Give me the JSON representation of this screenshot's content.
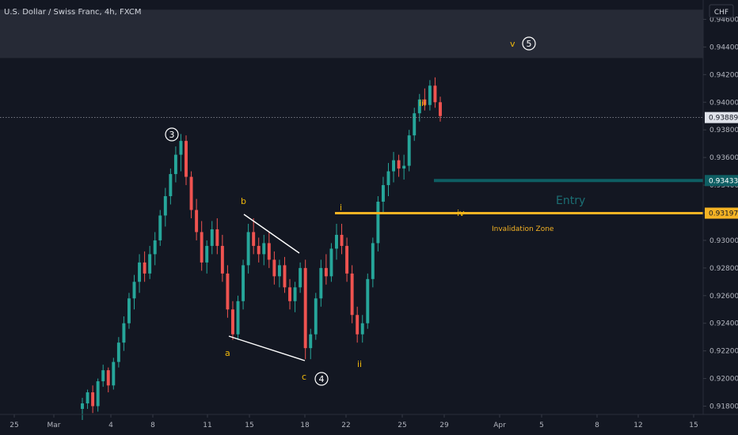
{
  "header": {
    "symbol_title": "U.S. Dollar / Swiss Franc, 4h, FXCM",
    "currency": "CHF"
  },
  "colors": {
    "background": "#131722",
    "up": "#26a69a",
    "down": "#ef5350",
    "wave_label": "#f0b90b",
    "entry_line": "#0e5e63",
    "entry_text": "#1b6f74",
    "invalidation_line": "#f5b324",
    "invalidation_tag": "#f5b324",
    "current_price_tag": "#e0e3eb",
    "axis_text": "#b2b5be"
  },
  "chart_data": {
    "type": "candlestick",
    "timeframe": "4h",
    "x_tick_labels": [
      "25",
      "Mar",
      "4",
      "8",
      "11",
      "15",
      "18",
      "22",
      "25",
      "29",
      "Apr",
      "5",
      "8",
      "12",
      "15"
    ],
    "y_tick_labels": [
      "0.91800",
      "0.92000",
      "0.92200",
      "0.92400",
      "0.92600",
      "0.92800",
      "0.93000",
      "0.93200",
      "0.93400",
      "0.93600",
      "0.93800",
      "0.94000",
      "0.94200",
      "0.94400",
      "0.94600"
    ],
    "ylim": [
      0.9174,
      0.9474
    ],
    "price_tags": {
      "current": "0.93889",
      "entry": "0.93433",
      "invalidation": "0.93197"
    },
    "levels": {
      "current": 0.93889,
      "entry": 0.93433,
      "invalidation": 0.93197,
      "target_zone": [
        0.9432,
        0.9467
      ]
    },
    "annotations": {
      "entry_label": "Entry",
      "invalidation_label": "Invalidation Zone"
    },
    "wave_labels": [
      {
        "text": "3",
        "price": 0.9388,
        "circled": true
      },
      {
        "text": "a",
        "price": 0.922,
        "circled": false
      },
      {
        "text": "b",
        "price": 0.9354,
        "circled": false
      },
      {
        "text": "c",
        "price": 0.9196,
        "circled": false
      },
      {
        "text": "4",
        "price": 0.9196,
        "circled": true
      },
      {
        "text": "i",
        "price": 0.9336,
        "circled": false
      },
      {
        "text": "ii",
        "price": 0.9212,
        "circled": false
      },
      {
        "text": "iii",
        "price": 0.9411,
        "circled": false
      },
      {
        "text": "iv",
        "price": 0.9326,
        "circled": false
      },
      {
        "text": "v",
        "price": 0.9464,
        "circled": false
      },
      {
        "text": "5",
        "price": 0.9464,
        "circled": true
      }
    ],
    "wedge": {
      "upper": [
        [
          0.9318
        ],
        [
          0.9296
        ]
      ],
      "lower": [
        [
          0.9231
        ],
        [
          0.9212
        ]
      ]
    },
    "candles": [
      [
        0.9178,
        0.9186,
        0.917,
        0.9182
      ],
      [
        0.9182,
        0.9192,
        0.9178,
        0.919
      ],
      [
        0.919,
        0.9195,
        0.9175,
        0.918
      ],
      [
        0.918,
        0.92,
        0.9176,
        0.9198
      ],
      [
        0.9198,
        0.921,
        0.9194,
        0.9206
      ],
      [
        0.9206,
        0.9208,
        0.919,
        0.9195
      ],
      [
        0.9195,
        0.9215,
        0.9192,
        0.9212
      ],
      [
        0.9212,
        0.923,
        0.9208,
        0.9226
      ],
      [
        0.9226,
        0.9245,
        0.922,
        0.924
      ],
      [
        0.924,
        0.9262,
        0.9236,
        0.9258
      ],
      [
        0.9258,
        0.9275,
        0.925,
        0.927
      ],
      [
        0.927,
        0.929,
        0.9262,
        0.9284
      ],
      [
        0.9284,
        0.9292,
        0.927,
        0.9276
      ],
      [
        0.9276,
        0.9296,
        0.9272,
        0.929
      ],
      [
        0.929,
        0.9306,
        0.9282,
        0.93
      ],
      [
        0.93,
        0.9322,
        0.9296,
        0.9318
      ],
      [
        0.9318,
        0.9338,
        0.931,
        0.9332
      ],
      [
        0.9332,
        0.9352,
        0.9326,
        0.9348
      ],
      [
        0.9348,
        0.9368,
        0.9342,
        0.9362
      ],
      [
        0.9362,
        0.9377,
        0.935,
        0.9372
      ],
      [
        0.9372,
        0.9376,
        0.934,
        0.9346
      ],
      [
        0.9346,
        0.935,
        0.9316,
        0.9322
      ],
      [
        0.9322,
        0.933,
        0.93,
        0.9306
      ],
      [
        0.9306,
        0.9314,
        0.9278,
        0.9284
      ],
      [
        0.9284,
        0.93,
        0.9276,
        0.9296
      ],
      [
        0.9296,
        0.9314,
        0.929,
        0.9308
      ],
      [
        0.9308,
        0.9316,
        0.929,
        0.9296
      ],
      [
        0.9296,
        0.9304,
        0.927,
        0.9276
      ],
      [
        0.9276,
        0.9282,
        0.9244,
        0.925
      ],
      [
        0.925,
        0.9256,
        0.9228,
        0.9232
      ],
      [
        0.9232,
        0.926,
        0.9228,
        0.9256
      ],
      [
        0.9256,
        0.9286,
        0.925,
        0.9282
      ],
      [
        0.9282,
        0.9312,
        0.9276,
        0.9306
      ],
      [
        0.9306,
        0.9316,
        0.929,
        0.9296
      ],
      [
        0.9296,
        0.9302,
        0.9284,
        0.929
      ],
      [
        0.929,
        0.9304,
        0.9282,
        0.9298
      ],
      [
        0.9298,
        0.9306,
        0.928,
        0.9286
      ],
      [
        0.9286,
        0.9292,
        0.9268,
        0.9274
      ],
      [
        0.9274,
        0.9286,
        0.9266,
        0.9282
      ],
      [
        0.9282,
        0.9288,
        0.9262,
        0.9266
      ],
      [
        0.9266,
        0.9272,
        0.925,
        0.9256
      ],
      [
        0.9256,
        0.927,
        0.9248,
        0.9266
      ],
      [
        0.9266,
        0.9284,
        0.9262,
        0.928
      ],
      [
        0.928,
        0.9286,
        0.9214,
        0.9222
      ],
      [
        0.9222,
        0.9236,
        0.9214,
        0.9232
      ],
      [
        0.9232,
        0.9262,
        0.9228,
        0.9258
      ],
      [
        0.9258,
        0.9286,
        0.9252,
        0.928
      ],
      [
        0.928,
        0.929,
        0.9268,
        0.9274
      ],
      [
        0.9274,
        0.9298,
        0.927,
        0.9294
      ],
      [
        0.9294,
        0.9312,
        0.9286,
        0.9304
      ],
      [
        0.9304,
        0.9312,
        0.929,
        0.9296
      ],
      [
        0.9296,
        0.9302,
        0.927,
        0.9276
      ],
      [
        0.9276,
        0.9282,
        0.924,
        0.9246
      ],
      [
        0.9246,
        0.9252,
        0.9226,
        0.9232
      ],
      [
        0.9232,
        0.9246,
        0.9226,
        0.924
      ],
      [
        0.924,
        0.9276,
        0.9236,
        0.9272
      ],
      [
        0.9272,
        0.9302,
        0.9266,
        0.9298
      ],
      [
        0.9298,
        0.9332,
        0.9292,
        0.9328
      ],
      [
        0.9328,
        0.9346,
        0.932,
        0.934
      ],
      [
        0.934,
        0.9356,
        0.9332,
        0.935
      ],
      [
        0.935,
        0.9364,
        0.9342,
        0.9358
      ],
      [
        0.9358,
        0.9362,
        0.9346,
        0.9352
      ],
      [
        0.9352,
        0.9362,
        0.9344,
        0.9354
      ],
      [
        0.9354,
        0.938,
        0.935,
        0.9376
      ],
      [
        0.9376,
        0.9396,
        0.9372,
        0.9392
      ],
      [
        0.9392,
        0.9406,
        0.9386,
        0.9402
      ],
      [
        0.9402,
        0.941,
        0.9394,
        0.9398
      ],
      [
        0.9398,
        0.9416,
        0.9394,
        0.9412
      ],
      [
        0.9412,
        0.9418,
        0.9396,
        0.94
      ],
      [
        0.94,
        0.9404,
        0.9386,
        0.939
      ]
    ]
  }
}
